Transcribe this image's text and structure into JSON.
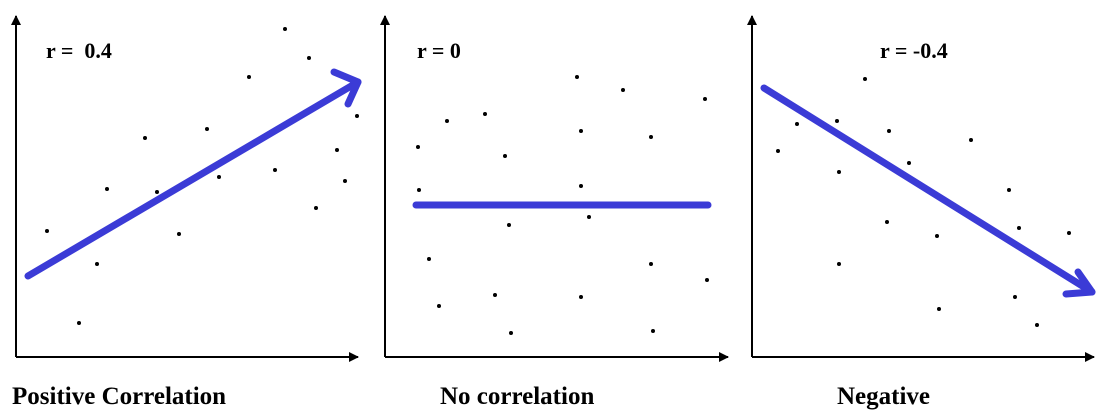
{
  "panels": [
    {
      "label": "r =  0.4",
      "caption": "Positive Correlation"
    },
    {
      "label": "r = 0",
      "caption": "No correlation"
    },
    {
      "label": "r = -0.4",
      "caption": "Negative"
    }
  ]
}
